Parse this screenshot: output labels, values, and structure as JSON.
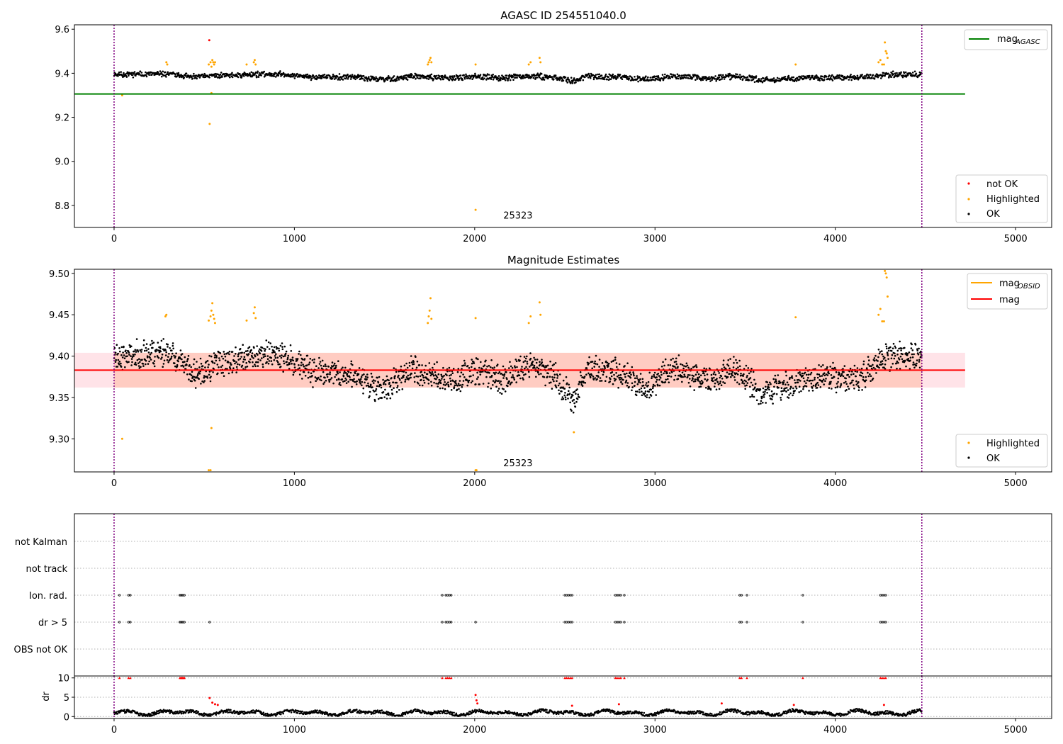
{
  "chart_data": [
    {
      "type": "scatter",
      "title": "AGASC ID 254551040.0",
      "xlim": [
        -220,
        5200
      ],
      "ylim": [
        8.7,
        9.62
      ],
      "xticks": [
        0,
        1000,
        2000,
        3000,
        4000,
        5000
      ],
      "yticks": [
        8.8,
        9.0,
        9.2,
        9.4,
        9.6
      ],
      "ytick_labels": [
        "8.8",
        "9.0",
        "9.2",
        "9.4",
        "9.6"
      ],
      "vlines": [
        0,
        4480
      ],
      "hline": {
        "name": "mag_AGASC",
        "label_main": "mag",
        "label_sub": "AGASC",
        "y": 9.306,
        "x_range": [
          -220,
          4720
        ],
        "color": "#008000"
      },
      "annotation": {
        "text": "25323",
        "x": 2240,
        "y": 8.74
      },
      "legend_lines": [
        {
          "label_main": "mag",
          "label_sub": "AGASC",
          "color": "#008000"
        }
      ],
      "legend_points": [
        {
          "label": "not OK",
          "color": "#ff0000"
        },
        {
          "label": "Highlighted",
          "color": "#ffa500"
        },
        {
          "label": "OK",
          "color": "#000000"
        }
      ],
      "series": [
        {
          "name": "OK",
          "color": "#000000",
          "model": "mag",
          "x_range": [
            0,
            4480
          ],
          "count": 1700,
          "seed": 11
        },
        {
          "name": "Highlighted",
          "color": "#ffa500",
          "points": [
            [
              45,
              9.3
            ],
            [
              290,
              9.45
            ],
            [
              295,
              9.44
            ],
            [
              525,
              9.44
            ],
            [
              535,
              9.45
            ],
            [
              540,
              9.43
            ],
            [
              545,
              9.46
            ],
            [
              550,
              9.45
            ],
            [
              555,
              9.44
            ],
            [
              560,
              9.45
            ],
            [
              540,
              9.31
            ],
            [
              735,
              9.44
            ],
            [
              775,
              9.45
            ],
            [
              780,
              9.46
            ],
            [
              785,
              9.44
            ],
            [
              1740,
              9.44
            ],
            [
              1745,
              9.45
            ],
            [
              1750,
              9.46
            ],
            [
              1755,
              9.47
            ],
            [
              1760,
              9.45
            ],
            [
              2005,
              9.44
            ],
            [
              2300,
              9.44
            ],
            [
              2310,
              9.45
            ],
            [
              2360,
              9.47
            ],
            [
              2365,
              9.45
            ],
            [
              3780,
              9.44
            ],
            [
              4240,
              9.45
            ],
            [
              4250,
              9.46
            ],
            [
              4260,
              9.44
            ],
            [
              4270,
              9.44
            ],
            [
              4275,
              9.54
            ],
            [
              4280,
              9.5
            ],
            [
              4285,
              9.49
            ],
            [
              4290,
              9.47
            ],
            [
              530,
              9.17
            ],
            [
              2005,
              8.78
            ]
          ]
        },
        {
          "name": "not OK",
          "color": "#ff0000",
          "points": [
            [
              528,
              9.55
            ]
          ]
        }
      ]
    },
    {
      "type": "scatter",
      "title": "Magnitude Estimates",
      "xlim": [
        -220,
        5200
      ],
      "ylim": [
        9.26,
        9.505
      ],
      "xticks": [
        0,
        1000,
        2000,
        3000,
        4000,
        5000
      ],
      "yticks": [
        9.3,
        9.35,
        9.4,
        9.45,
        9.5
      ],
      "ytick_labels": [
        "9.30",
        "9.35",
        "9.40",
        "9.45",
        "9.50"
      ],
      "vlines": [
        0,
        4480
      ],
      "mag_line": {
        "y": 9.383,
        "x_range": [
          -220,
          4720
        ],
        "color": "#ff0000"
      },
      "band_outer": {
        "y": [
          9.362,
          9.404
        ],
        "x_range": [
          -220,
          4720
        ],
        "color": "#ffc0cb"
      },
      "band_inner": {
        "y": [
          9.362,
          9.404
        ],
        "x_range": [
          0,
          4480
        ],
        "color": "#ffa07a"
      },
      "annotation": {
        "text": "25323",
        "x": 2240,
        "y": 9.267
      },
      "legend_lines": [
        {
          "label_main": "mag",
          "label_sub": "OBSID",
          "color": "#ffa500"
        },
        {
          "label_main": "mag",
          "label_sub": "",
          "color": "#ff0000"
        }
      ],
      "legend_points": [
        {
          "label": "Highlighted",
          "color": "#ffa500"
        },
        {
          "label": "OK",
          "color": "#000000"
        }
      ],
      "series": [
        {
          "name": "OK",
          "color": "#000000",
          "model": "mag",
          "x_range": [
            0,
            4480
          ],
          "count": 2200,
          "seed": 23
        },
        {
          "name": "Highlighted",
          "color": "#ffa500",
          "points": [
            [
              45,
              9.3
            ],
            [
              285,
              9.448
            ],
            [
              290,
              9.45
            ],
            [
              525,
              9.443
            ],
            [
              535,
              9.448
            ],
            [
              540,
              9.455
            ],
            [
              545,
              9.464
            ],
            [
              550,
              9.45
            ],
            [
              555,
              9.445
            ],
            [
              560,
              9.44
            ],
            [
              540,
              9.313
            ],
            [
              525,
              9.262
            ],
            [
              535,
              9.262
            ],
            [
              735,
              9.443
            ],
            [
              775,
              9.452
            ],
            [
              780,
              9.459
            ],
            [
              785,
              9.446
            ],
            [
              1740,
              9.44
            ],
            [
              1745,
              9.448
            ],
            [
              1750,
              9.455
            ],
            [
              1755,
              9.47
            ],
            [
              1760,
              9.445
            ],
            [
              2005,
              9.446
            ],
            [
              2005,
              9.262
            ],
            [
              2010,
              9.262
            ],
            [
              2300,
              9.44
            ],
            [
              2310,
              9.448
            ],
            [
              2360,
              9.465
            ],
            [
              2365,
              9.45
            ],
            [
              2550,
              9.308
            ],
            [
              3780,
              9.447
            ],
            [
              4240,
              9.45
            ],
            [
              4250,
              9.457
            ],
            [
              4260,
              9.442
            ],
            [
              4270,
              9.442
            ],
            [
              4275,
              9.503
            ],
            [
              4280,
              9.5
            ],
            [
              4285,
              9.495
            ],
            [
              4290,
              9.472
            ]
          ]
        }
      ]
    },
    {
      "type": "scatter",
      "title": "",
      "xlim": [
        -220,
        5200
      ],
      "categories": [
        "OBS not OK",
        "dr > 5",
        "Ion. rad.",
        "not track",
        "not Kalman"
      ],
      "vlines": [
        0,
        4480
      ],
      "series": [
        {
          "name": "Ion. rad.",
          "color": "#000000",
          "x": [
            30,
            80,
            90,
            365,
            370,
            375,
            380,
            385,
            390,
            1820,
            1840,
            1850,
            1860,
            1870,
            2500,
            2510,
            2520,
            2530,
            2540,
            2780,
            2790,
            2800,
            2810,
            2830,
            3470,
            3480,
            3510,
            3820,
            4250,
            4260,
            4270,
            4280
          ]
        },
        {
          "name": "dr > 5",
          "color": "#000000",
          "x": [
            30,
            80,
            90,
            365,
            370,
            375,
            380,
            385,
            390,
            530,
            1820,
            1840,
            1850,
            1860,
            1870,
            2005,
            2500,
            2510,
            2520,
            2530,
            2540,
            2780,
            2790,
            2800,
            2810,
            2830,
            3470,
            3480,
            3510,
            3820,
            4250,
            4260,
            4270,
            4280
          ]
        }
      ]
    },
    {
      "type": "scatter",
      "title": "",
      "xlim": [
        -220,
        5200
      ],
      "ylim": [
        -0.5,
        10.5
      ],
      "yticks": [
        0,
        5,
        10
      ],
      "ytick_labels": [
        "0",
        "5",
        "10"
      ],
      "xticks": [
        0,
        1000,
        2000,
        3000,
        4000,
        5000
      ],
      "ylabel": "dr",
      "vlines": [
        0,
        4480
      ],
      "series": [
        {
          "name": "OK",
          "color": "#000000",
          "model": "dr",
          "x_range": [
            0,
            4480
          ],
          "count": 1500,
          "seed": 37
        },
        {
          "name": "not OK",
          "color": "#ff0000",
          "points": [
            [
              30,
              10
            ],
            [
              80,
              10
            ],
            [
              90,
              10
            ],
            [
              365,
              10
            ],
            [
              370,
              10
            ],
            [
              375,
              10
            ],
            [
              380,
              10
            ],
            [
              385,
              10
            ],
            [
              390,
              10
            ],
            [
              1820,
              10
            ],
            [
              1840,
              10
            ],
            [
              1850,
              10
            ],
            [
              1860,
              10
            ],
            [
              1870,
              10
            ],
            [
              2500,
              10
            ],
            [
              2510,
              10
            ],
            [
              2520,
              10
            ],
            [
              2530,
              10
            ],
            [
              2540,
              10
            ],
            [
              2780,
              10
            ],
            [
              2790,
              10
            ],
            [
              2800,
              10
            ],
            [
              2810,
              10
            ],
            [
              2830,
              10
            ],
            [
              3470,
              10
            ],
            [
              3480,
              10
            ],
            [
              3510,
              10
            ],
            [
              3820,
              10
            ],
            [
              4250,
              10
            ],
            [
              4260,
              10
            ],
            [
              4270,
              10
            ],
            [
              4280,
              10
            ],
            [
              530,
              4.8
            ],
            [
              545,
              3.6
            ],
            [
              560,
              3.2
            ],
            [
              575,
              3.0
            ],
            [
              2005,
              5.6
            ],
            [
              2010,
              4.2
            ],
            [
              2015,
              3.4
            ],
            [
              2540,
              2.8
            ],
            [
              2800,
              3.2
            ],
            [
              3370,
              3.4
            ],
            [
              3770,
              3.0
            ],
            [
              4270,
              3.0
            ]
          ]
        }
      ]
    }
  ]
}
